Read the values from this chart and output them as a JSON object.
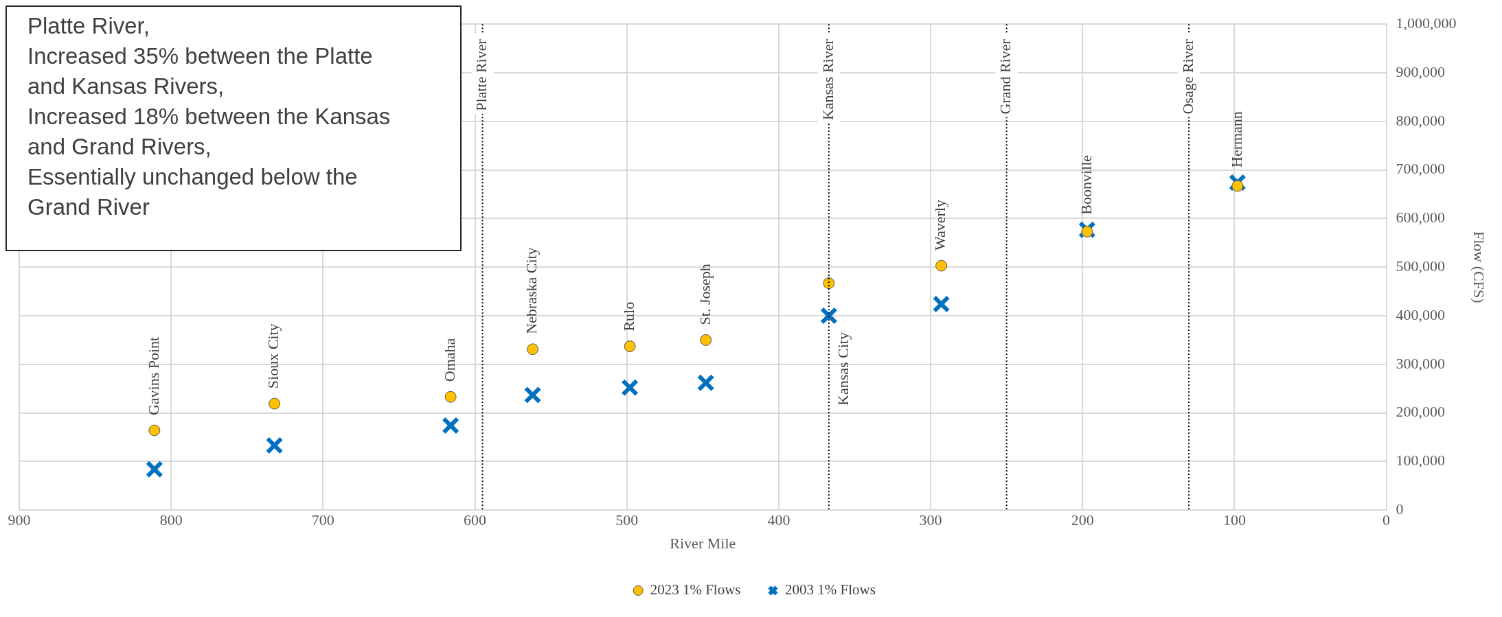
{
  "chart_data": {
    "type": "scatter",
    "xlabel": "River Mile",
    "ylabel": "Flow (CFS)",
    "xlim": [
      900,
      0
    ],
    "xticks": [
      900,
      800,
      700,
      600,
      500,
      400,
      300,
      200,
      100,
      0
    ],
    "ylim": [
      0,
      1000000
    ],
    "yticks": [
      {
        "value": 0,
        "label": "0"
      },
      {
        "value": 100000,
        "label": "100,000"
      },
      {
        "value": 200000,
        "label": "200,000"
      },
      {
        "value": 300000,
        "label": "300,000"
      },
      {
        "value": 400000,
        "label": "400,000"
      },
      {
        "value": 500000,
        "label": "500,000"
      },
      {
        "value": 600000,
        "label": "600,000"
      },
      {
        "value": 700000,
        "label": "700,000"
      },
      {
        "value": 800000,
        "label": "800,000"
      },
      {
        "value": 900000,
        "label": "900,000"
      },
      {
        "value": 1000000,
        "label": "1,000,000"
      }
    ],
    "grid": true,
    "legend": "bottom",
    "series": [
      {
        "name": "2003 1% Flows",
        "color": "#0070c0",
        "marker": "cross",
        "x": [
          811,
          732,
          616,
          562,
          498,
          448,
          367,
          293,
          197,
          98
        ],
        "values": [
          84000,
          133000,
          174000,
          237000,
          252000,
          262000,
          400000,
          424000,
          577000,
          674000
        ]
      },
      {
        "name": "2023 1% Flows",
        "color": "#ffc000",
        "marker": "circle",
        "x": [
          811,
          732,
          616,
          562,
          498,
          448,
          367,
          293,
          197,
          98
        ],
        "values": [
          164000,
          219000,
          233000,
          331000,
          337000,
          350000,
          467000,
          503000,
          573000,
          667000
        ]
      }
    ],
    "ref_lines": [
      {
        "axis": "x",
        "value": 595,
        "label": "Platte River",
        "color": "#000000",
        "line_style": "dotted"
      },
      {
        "axis": "x",
        "value": 367,
        "label": "Kansas River",
        "color": "#000000",
        "line_style": "dotted"
      },
      {
        "axis": "x",
        "value": 250,
        "label": "Grand River",
        "color": "#000000",
        "line_style": "dotted"
      },
      {
        "axis": "x",
        "value": 130,
        "label": "Osage River",
        "color": "#000000",
        "line_style": "dotted"
      }
    ],
    "annotations": [
      "Platte River,\nIncreased 35% between the Platte\nand Kansas Rivers,\nIncreased 18% between the Kansas\nand Grand Rivers,\nEssentially unchanged below the\nGrand River",
      {
        "text": "Gavins Point",
        "x": 811,
        "y": 164000
      },
      {
        "text": "Sioux City",
        "x": 732,
        "y": 219000
      },
      {
        "text": "Omaha",
        "x": 616,
        "y": 233000
      },
      {
        "text": "Nebraska City",
        "x": 562,
        "y": 331000
      },
      {
        "text": "Rulo",
        "x": 498,
        "y": 337000
      },
      {
        "text": "St. Joseph",
        "x": 448,
        "y": 350000
      },
      {
        "text": "Kansas City",
        "x": 367,
        "y": 400000
      },
      {
        "text": "Waverly",
        "x": 293,
        "y": 503000
      },
      {
        "text": "Boonville",
        "x": 197,
        "y": 577000
      },
      {
        "text": "Hermann",
        "x": 98,
        "y": 674000
      }
    ]
  }
}
